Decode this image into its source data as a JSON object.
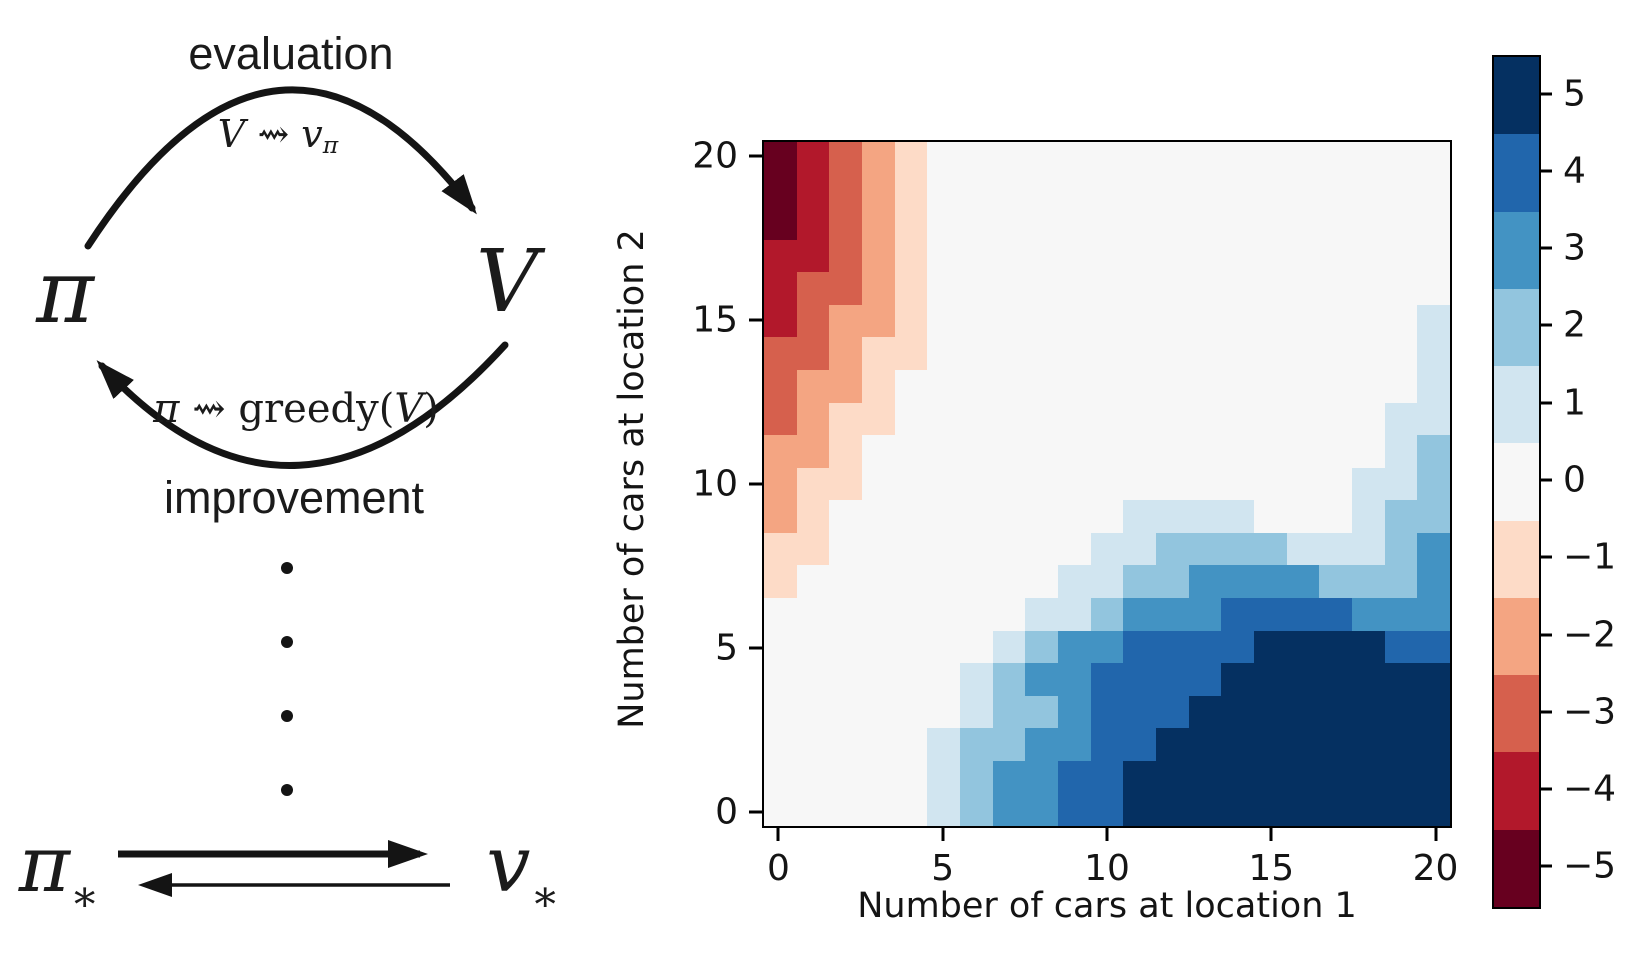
{
  "figure": {
    "diagram": {
      "evaluation_label": "evaluation",
      "evaluation_formula": {
        "lhs": "V",
        "arrow": " ⇝ ",
        "rhs_base": "v",
        "rhs_sub": "π"
      },
      "improvement_label": "improvement",
      "improvement_formula": {
        "lhs": "π",
        "arrow": " ⇝ ",
        "fn_name": "greedy(",
        "fn_arg": "V",
        "fn_close": ")"
      },
      "pi_symbol": "π",
      "value_symbol": "V",
      "dots": [
        "•",
        "•",
        "•",
        "•"
      ],
      "pi_star": {
        "base": "π",
        "sub": "∗"
      },
      "v_star": {
        "base": "v",
        "sub": "∗"
      }
    }
  },
  "chart_data": {
    "type": "heatmap",
    "title": "",
    "xlabel": "Number of cars at location 1",
    "ylabel": "Number of cars at location 2",
    "x_ticks": [
      0,
      5,
      10,
      15,
      20
    ],
    "y_ticks": [
      0,
      5,
      10,
      15,
      20
    ],
    "x_range": [
      0,
      20
    ],
    "y_range": [
      0,
      20
    ],
    "grid_size": 21,
    "legend_position": "right-colorbar",
    "colorbar": {
      "values_top_to_bottom": [
        5,
        4,
        3,
        2,
        1,
        0,
        -1,
        -2,
        -3,
        -4,
        -5
      ],
      "tick_labels_top_to_bottom": [
        "5",
        "4",
        "3",
        "2",
        "1",
        "0",
        "−1",
        "−2",
        "−3",
        "−4",
        "−5"
      ]
    },
    "palette": {
      "-5": "#67001f",
      "-4": "#b2182b",
      "-3": "#d6604d",
      "-2": "#f4a582",
      "-1": "#fddbc7",
      "0": "#f7f7f7",
      "1": "#d1e5f0",
      "2": "#92c5de",
      "3": "#4393c3",
      "4": "#2166ac",
      "5": "#053061"
    },
    "rows_axis": "n2 cars at location 2, top row = 20, bottom row = 0",
    "cols_axis": "n1 cars at location 1, left col = 0, right col = 20",
    "policy_grid": [
      [
        -5,
        -4,
        -3,
        -2,
        -1,
        0,
        0,
        0,
        0,
        0,
        0,
        0,
        0,
        0,
        0,
        0,
        0,
        0,
        0,
        0,
        0
      ],
      [
        -5,
        -4,
        -3,
        -2,
        -1,
        0,
        0,
        0,
        0,
        0,
        0,
        0,
        0,
        0,
        0,
        0,
        0,
        0,
        0,
        0,
        0
      ],
      [
        -5,
        -4,
        -3,
        -2,
        -1,
        0,
        0,
        0,
        0,
        0,
        0,
        0,
        0,
        0,
        0,
        0,
        0,
        0,
        0,
        0,
        0
      ],
      [
        -4,
        -4,
        -3,
        -2,
        -1,
        0,
        0,
        0,
        0,
        0,
        0,
        0,
        0,
        0,
        0,
        0,
        0,
        0,
        0,
        0,
        0
      ],
      [
        -4,
        -3,
        -3,
        -2,
        -1,
        0,
        0,
        0,
        0,
        0,
        0,
        0,
        0,
        0,
        0,
        0,
        0,
        0,
        0,
        0,
        0
      ],
      [
        -4,
        -3,
        -2,
        -2,
        -1,
        0,
        0,
        0,
        0,
        0,
        0,
        0,
        0,
        0,
        0,
        0,
        0,
        0,
        0,
        0,
        1
      ],
      [
        -3,
        -3,
        -2,
        -1,
        -1,
        0,
        0,
        0,
        0,
        0,
        0,
        0,
        0,
        0,
        0,
        0,
        0,
        0,
        0,
        0,
        1
      ],
      [
        -3,
        -2,
        -2,
        -1,
        0,
        0,
        0,
        0,
        0,
        0,
        0,
        0,
        0,
        0,
        0,
        0,
        0,
        0,
        0,
        0,
        1
      ],
      [
        -3,
        -2,
        -1,
        -1,
        0,
        0,
        0,
        0,
        0,
        0,
        0,
        0,
        0,
        0,
        0,
        0,
        0,
        0,
        0,
        1,
        1
      ],
      [
        -2,
        -2,
        -1,
        0,
        0,
        0,
        0,
        0,
        0,
        0,
        0,
        0,
        0,
        0,
        0,
        0,
        0,
        0,
        0,
        1,
        2
      ],
      [
        -2,
        -1,
        -1,
        0,
        0,
        0,
        0,
        0,
        0,
        0,
        0,
        0,
        0,
        0,
        0,
        0,
        0,
        0,
        1,
        1,
        2
      ],
      [
        -2,
        -1,
        0,
        0,
        0,
        0,
        0,
        0,
        0,
        0,
        0,
        1,
        1,
        1,
        1,
        0,
        0,
        0,
        1,
        2,
        2
      ],
      [
        -1,
        -1,
        0,
        0,
        0,
        0,
        0,
        0,
        0,
        0,
        1,
        1,
        2,
        2,
        2,
        2,
        1,
        1,
        1,
        2,
        3
      ],
      [
        -1,
        0,
        0,
        0,
        0,
        0,
        0,
        0,
        0,
        1,
        1,
        2,
        2,
        3,
        3,
        3,
        3,
        2,
        2,
        2,
        3
      ],
      [
        0,
        0,
        0,
        0,
        0,
        0,
        0,
        0,
        1,
        1,
        2,
        3,
        3,
        3,
        4,
        4,
        4,
        4,
        3,
        3,
        3
      ],
      [
        0,
        0,
        0,
        0,
        0,
        0,
        0,
        1,
        2,
        3,
        3,
        4,
        4,
        4,
        4,
        5,
        5,
        5,
        5,
        4,
        4
      ],
      [
        0,
        0,
        0,
        0,
        0,
        0,
        1,
        2,
        3,
        3,
        4,
        4,
        4,
        4,
        5,
        5,
        5,
        5,
        5,
        5,
        5
      ],
      [
        0,
        0,
        0,
        0,
        0,
        0,
        1,
        2,
        2,
        3,
        4,
        4,
        4,
        5,
        5,
        5,
        5,
        5,
        5,
        5,
        5
      ],
      [
        0,
        0,
        0,
        0,
        0,
        1,
        2,
        2,
        3,
        3,
        4,
        4,
        5,
        5,
        5,
        5,
        5,
        5,
        5,
        5,
        5
      ],
      [
        0,
        0,
        0,
        0,
        0,
        1,
        2,
        3,
        3,
        4,
        4,
        5,
        5,
        5,
        5,
        5,
        5,
        5,
        5,
        5,
        5
      ],
      [
        0,
        0,
        0,
        0,
        0,
        1,
        2,
        3,
        3,
        4,
        4,
        5,
        5,
        5,
        5,
        5,
        5,
        5,
        5,
        5,
        5
      ]
    ]
  }
}
